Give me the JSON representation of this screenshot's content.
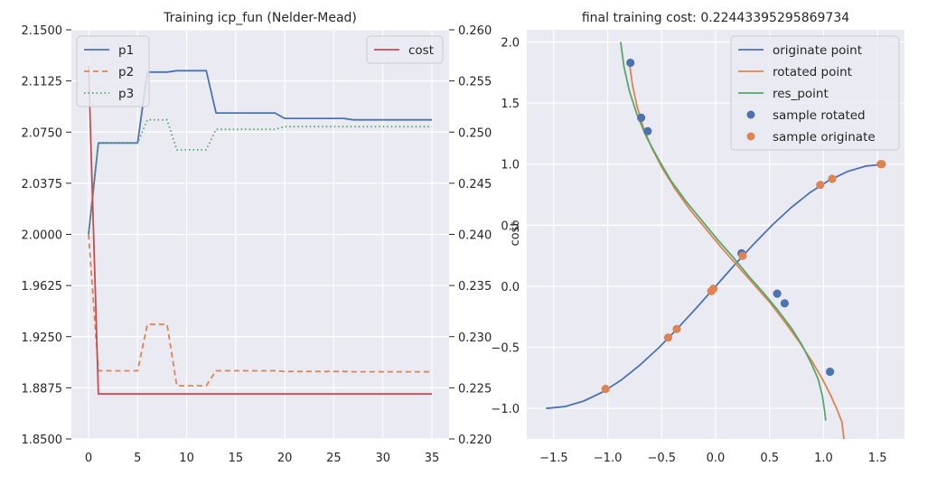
{
  "chart_data": [
    {
      "type": "line",
      "title": "Training icp_fun (Nelder-Mead)",
      "xlabel": "",
      "ylabel": "",
      "xlim": [
        -1.75,
        36.75
      ],
      "ylim": [
        1.85,
        2.15
      ],
      "x_ticks": [
        0,
        5,
        10,
        15,
        20,
        25,
        30,
        35
      ],
      "y_ticks": [
        1.85,
        1.8875,
        1.925,
        1.9625,
        2.0,
        2.0375,
        2.075,
        2.1125,
        2.15
      ],
      "y_tick_labels": [
        "1.8500",
        "1.8875",
        "1.9250",
        "1.9625",
        "2.0000",
        "2.0375",
        "2.0750",
        "2.1125",
        "2.1500"
      ],
      "series": [
        {
          "name": "p1",
          "color": "#4c72b0",
          "dash": "solid",
          "x": [
            0,
            1,
            2,
            3,
            4,
            5,
            6,
            7,
            8,
            9,
            10,
            11,
            12,
            13,
            14,
            15,
            16,
            17,
            18,
            19,
            20,
            21,
            22,
            23,
            24,
            25,
            26,
            27,
            28,
            29,
            30,
            31,
            32,
            33,
            34,
            35
          ],
          "values": [
            2.0,
            2.067,
            2.067,
            2.067,
            2.067,
            2.067,
            2.119,
            2.119,
            2.119,
            2.12,
            2.12,
            2.12,
            2.12,
            2.089,
            2.089,
            2.089,
            2.089,
            2.089,
            2.089,
            2.089,
            2.085,
            2.085,
            2.085,
            2.085,
            2.085,
            2.085,
            2.085,
            2.084,
            2.084,
            2.084,
            2.084,
            2.084,
            2.084,
            2.084,
            2.084,
            2.084
          ]
        },
        {
          "name": "p2",
          "color": "#dd8452",
          "dash": "dashed",
          "x": [
            0,
            1,
            2,
            3,
            4,
            5,
            6,
            7,
            8,
            9,
            10,
            11,
            12,
            13,
            14,
            15,
            16,
            17,
            18,
            19,
            20,
            21,
            22,
            23,
            24,
            25,
            26,
            27,
            28,
            29,
            30,
            31,
            32,
            33,
            34,
            35
          ],
          "values": [
            2.0,
            1.9,
            1.9,
            1.9,
            1.9,
            1.9,
            1.934,
            1.934,
            1.934,
            1.889,
            1.889,
            1.889,
            1.889,
            1.9,
            1.9,
            1.9,
            1.9,
            1.9,
            1.9,
            1.9,
            1.8995,
            1.8995,
            1.8995,
            1.8995,
            1.8995,
            1.8995,
            1.8995,
            1.8993,
            1.8993,
            1.8993,
            1.8993,
            1.8993,
            1.8993,
            1.8993,
            1.8993,
            1.8993
          ]
        },
        {
          "name": "p3",
          "color": "#55a868",
          "dash": "dotted",
          "x": [
            0,
            1,
            2,
            3,
            4,
            5,
            6,
            7,
            8,
            9,
            10,
            11,
            12,
            13,
            14,
            15,
            16,
            17,
            18,
            19,
            20,
            21,
            22,
            23,
            24,
            25,
            26,
            27,
            28,
            29,
            30,
            31,
            32,
            33,
            34,
            35
          ],
          "values": [
            2.0,
            2.067,
            2.067,
            2.067,
            2.067,
            2.067,
            2.084,
            2.084,
            2.084,
            2.062,
            2.062,
            2.062,
            2.062,
            2.077,
            2.077,
            2.077,
            2.077,
            2.077,
            2.077,
            2.077,
            2.079,
            2.079,
            2.079,
            2.079,
            2.079,
            2.079,
            2.079,
            2.079,
            2.079,
            2.079,
            2.079,
            2.079,
            2.079,
            2.079,
            2.079,
            2.079
          ]
        }
      ],
      "secondary_axis": {
        "ylabel": "cost",
        "ylim": [
          0.22,
          0.26
        ],
        "y_ticks": [
          0.22,
          0.225,
          0.23,
          0.235,
          0.24,
          0.245,
          0.25,
          0.255,
          0.26
        ],
        "y_tick_labels": [
          "0.220",
          "0.225",
          "0.230",
          "0.235",
          "0.240",
          "0.245",
          "0.250",
          "0.255",
          "0.260"
        ],
        "series": [
          {
            "name": "cost",
            "color": "#c44e52",
            "dash": "solid",
            "x": [
              0,
              1,
              2,
              3,
              4,
              5,
              6,
              7,
              8,
              9,
              10,
              11,
              12,
              13,
              14,
              15,
              16,
              17,
              18,
              19,
              20,
              21,
              22,
              23,
              24,
              25,
              26,
              27,
              28,
              29,
              30,
              31,
              32,
              33,
              34,
              35
            ],
            "values": [
              0.2565,
              0.2244,
              0.2244,
              0.2244,
              0.2244,
              0.2244,
              0.2244,
              0.2244,
              0.2244,
              0.2244,
              0.2244,
              0.2244,
              0.2244,
              0.2244,
              0.2244,
              0.2244,
              0.2244,
              0.2244,
              0.2244,
              0.2244,
              0.2244,
              0.2244,
              0.2244,
              0.2244,
              0.2244,
              0.2244,
              0.2244,
              0.2244,
              0.2244,
              0.2244,
              0.2244,
              0.2244,
              0.2244,
              0.2244,
              0.2244,
              0.2244
            ]
          }
        ]
      },
      "legends": [
        {
          "placement": "upper-left",
          "entries": [
            "p1",
            "p2",
            "p3"
          ]
        },
        {
          "placement": "upper-right",
          "entries": [
            "cost"
          ]
        }
      ],
      "grid": true
    },
    {
      "type": "line",
      "title": "final training cost: 0.22443395295869734",
      "xlabel": "",
      "ylabel": "",
      "xlim": [
        -1.75,
        1.75
      ],
      "ylim": [
        -1.25,
        2.1
      ],
      "x_ticks": [
        -1.5,
        -1.0,
        -0.5,
        0.0,
        0.5,
        1.0,
        1.5
      ],
      "x_tick_labels": [
        "−1.5",
        "−1.0",
        "−0.5",
        "0.0",
        "0.5",
        "1.0",
        "1.5"
      ],
      "y_ticks": [
        -1.0,
        -0.5,
        0.0,
        0.5,
        1.0,
        1.5,
        2.0
      ],
      "y_tick_labels": [
        "−1.0",
        "−0.5",
        "0.0",
        "0.5",
        "1.0",
        "1.5",
        "2.0"
      ],
      "series": [
        {
          "name": "originate point",
          "color": "#4c72b0",
          "kind": "line",
          "x": [
            -1.5708,
            -1.3963,
            -1.2217,
            -1.0472,
            -0.8727,
            -0.6981,
            -0.5236,
            -0.3491,
            -0.1745,
            0.0,
            0.1745,
            0.3491,
            0.5236,
            0.6981,
            0.8727,
            1.0472,
            1.2217,
            1.3963,
            1.5708
          ],
          "values": [
            -1.0,
            -0.985,
            -0.9397,
            -0.866,
            -0.766,
            -0.6428,
            -0.5,
            -0.342,
            -0.1736,
            0.0,
            0.1736,
            0.342,
            0.5,
            0.6428,
            0.766,
            0.866,
            0.9397,
            0.985,
            1.0
          ]
        },
        {
          "name": "rotated point",
          "color": "#dd8452",
          "kind": "line",
          "x": [
            -0.8,
            -0.77,
            -0.73,
            -0.67,
            -0.59,
            -0.49,
            -0.37,
            -0.24,
            -0.1,
            0.05,
            0.2,
            0.35,
            0.5,
            0.64,
            0.77,
            0.89,
            0.99,
            1.07,
            1.13,
            1.17,
            1.19
          ],
          "values": [
            1.83,
            1.65,
            1.48,
            1.3,
            1.13,
            0.96,
            0.79,
            0.63,
            0.48,
            0.32,
            0.17,
            0.02,
            -0.13,
            -0.29,
            -0.45,
            -0.61,
            -0.76,
            -0.9,
            -1.02,
            -1.11,
            -1.25
          ]
        },
        {
          "name": "res_point",
          "color": "#55a868",
          "kind": "line",
          "x": [
            -0.88,
            -0.85,
            -0.8,
            -0.73,
            -0.64,
            -0.53,
            -0.41,
            -0.27,
            -0.12,
            0.02,
            0.17,
            0.31,
            0.45,
            0.58,
            0.7,
            0.8,
            0.88,
            0.95,
            0.99,
            1.01,
            1.02
          ],
          "values": [
            2.0,
            1.8,
            1.6,
            1.41,
            1.22,
            1.04,
            0.86,
            0.69,
            0.53,
            0.38,
            0.23,
            0.08,
            -0.06,
            -0.2,
            -0.34,
            -0.48,
            -0.62,
            -0.76,
            -0.9,
            -1.02,
            -1.1
          ]
        },
        {
          "name": "sample rotated",
          "color": "#4c72b0",
          "kind": "scatter",
          "x": [
            -0.79,
            -0.69,
            -0.63,
            0.24,
            0.57,
            0.64,
            1.06
          ],
          "values": [
            1.83,
            1.38,
            1.27,
            0.27,
            -0.06,
            -0.14,
            -0.7
          ]
        },
        {
          "name": "sample originate",
          "color": "#dd8452",
          "kind": "scatter",
          "x": [
            -1.02,
            -0.44,
            -0.36,
            -0.04,
            -0.02,
            0.25,
            0.97,
            1.08,
            1.53,
            1.54
          ],
          "values": [
            -0.84,
            -0.42,
            -0.35,
            -0.04,
            -0.02,
            0.25,
            0.83,
            0.88,
            1.0,
            1.0
          ]
        }
      ],
      "legends": [
        {
          "placement": "upper-right",
          "entries": [
            "originate point",
            "rotated point",
            "res_point",
            "sample rotated",
            "sample originate"
          ]
        }
      ],
      "grid": true
    }
  ]
}
